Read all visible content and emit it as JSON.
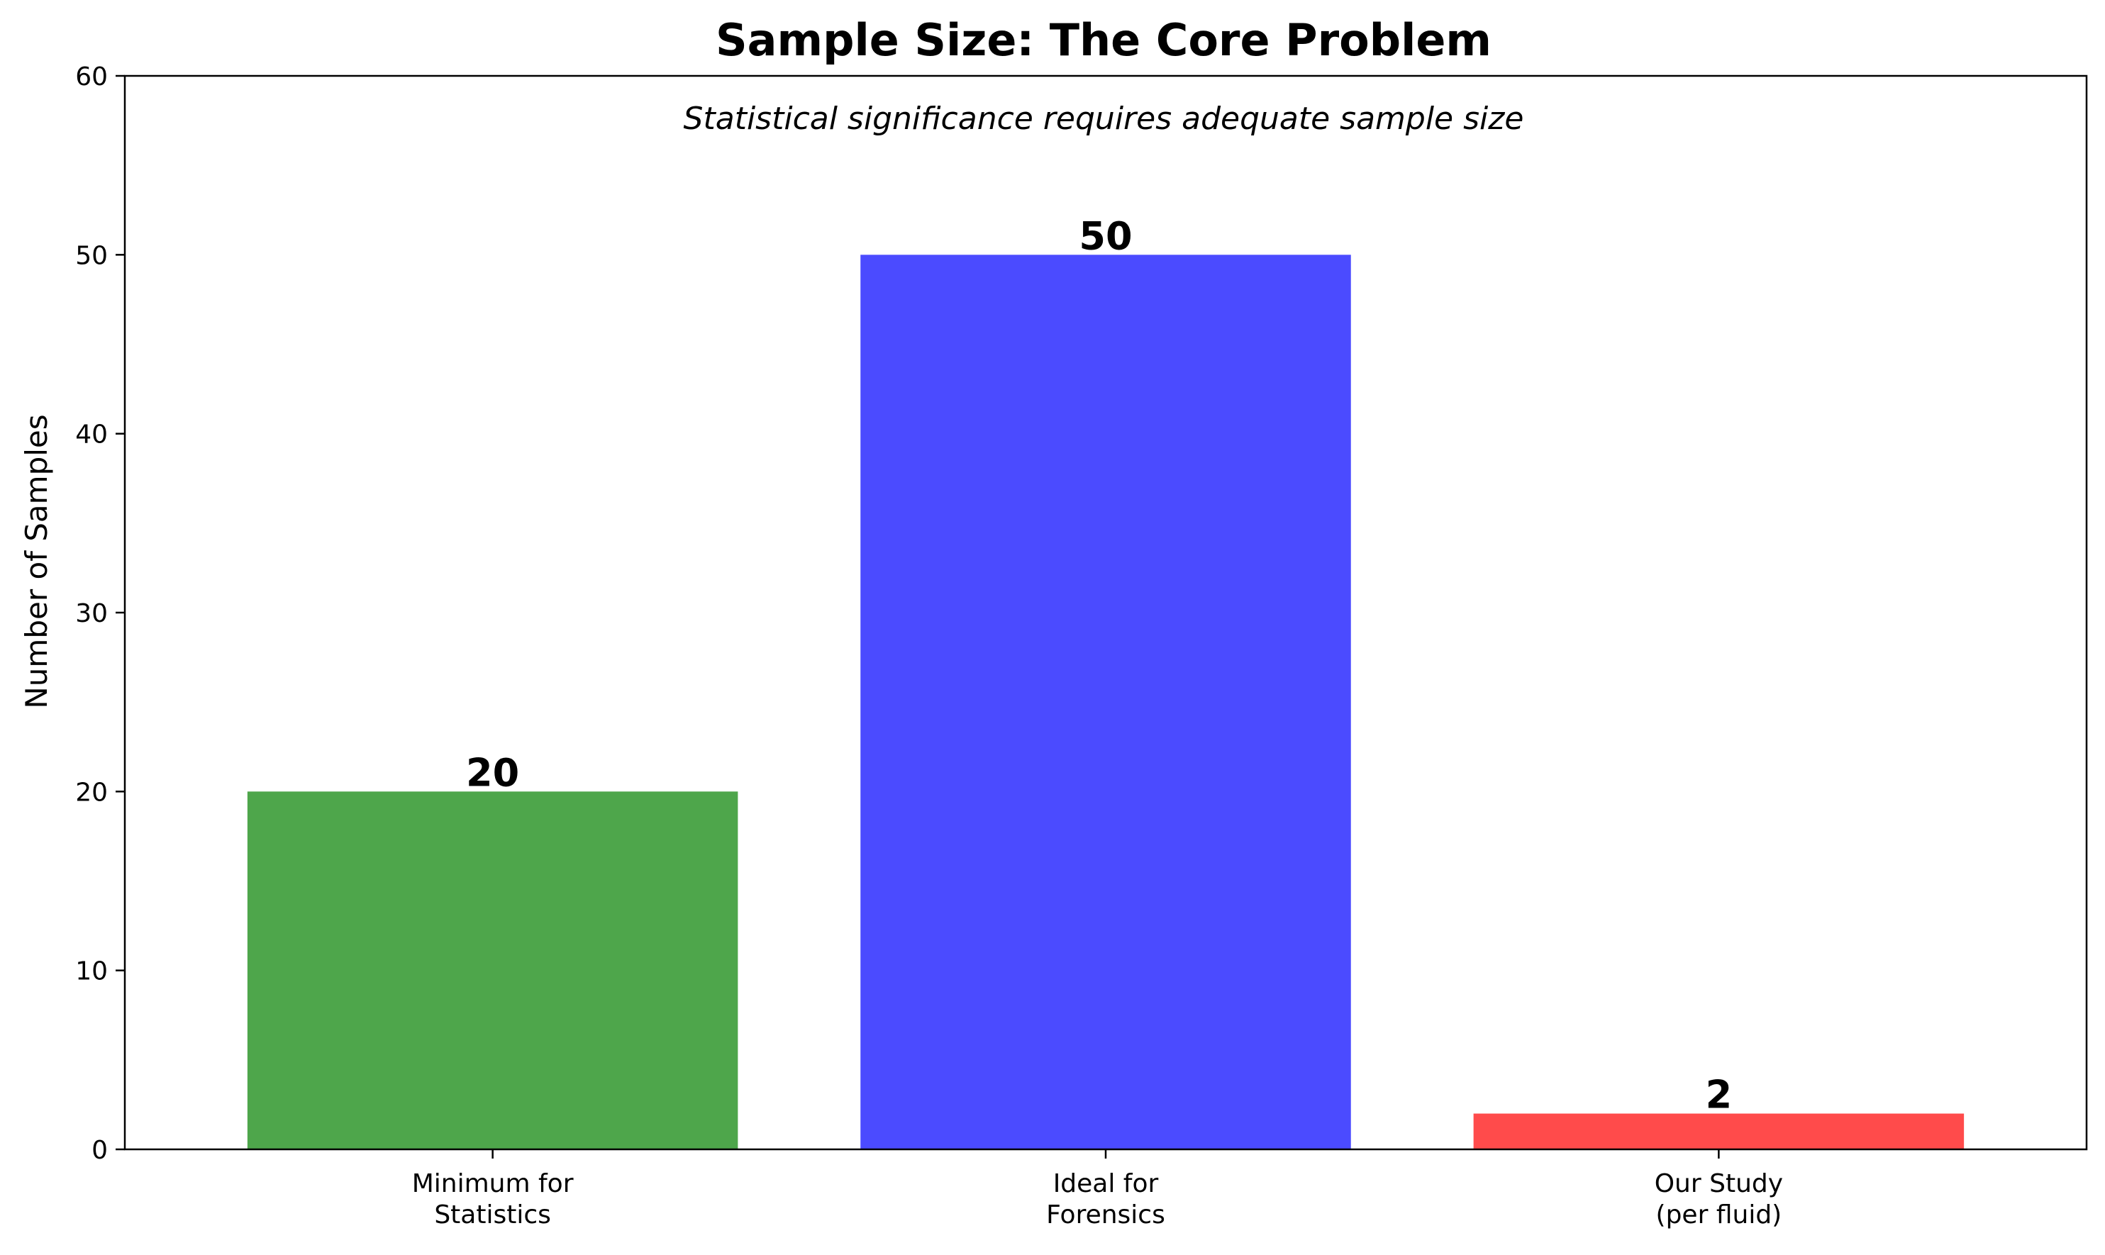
{
  "chart_data": {
    "type": "bar",
    "title": "Sample Size: The Core Problem",
    "subtitle": "Statistical significance requires adequate sample size",
    "xlabel": "",
    "ylabel": "Number of Samples",
    "ylim": [
      0,
      60
    ],
    "yticks": [
      0,
      10,
      20,
      30,
      40,
      50,
      60
    ],
    "grid": false,
    "categories": [
      [
        "Minimum for",
        "Statistics"
      ],
      [
        "Ideal for",
        "Forensics"
      ],
      [
        "Our Study",
        "(per fluid)"
      ]
    ],
    "values": [
      20,
      50,
      2
    ],
    "data_labels": [
      "20",
      "50",
      "2"
    ],
    "colors": [
      "#4ea64b",
      "#4b4bff",
      "#ff4b4b"
    ]
  }
}
